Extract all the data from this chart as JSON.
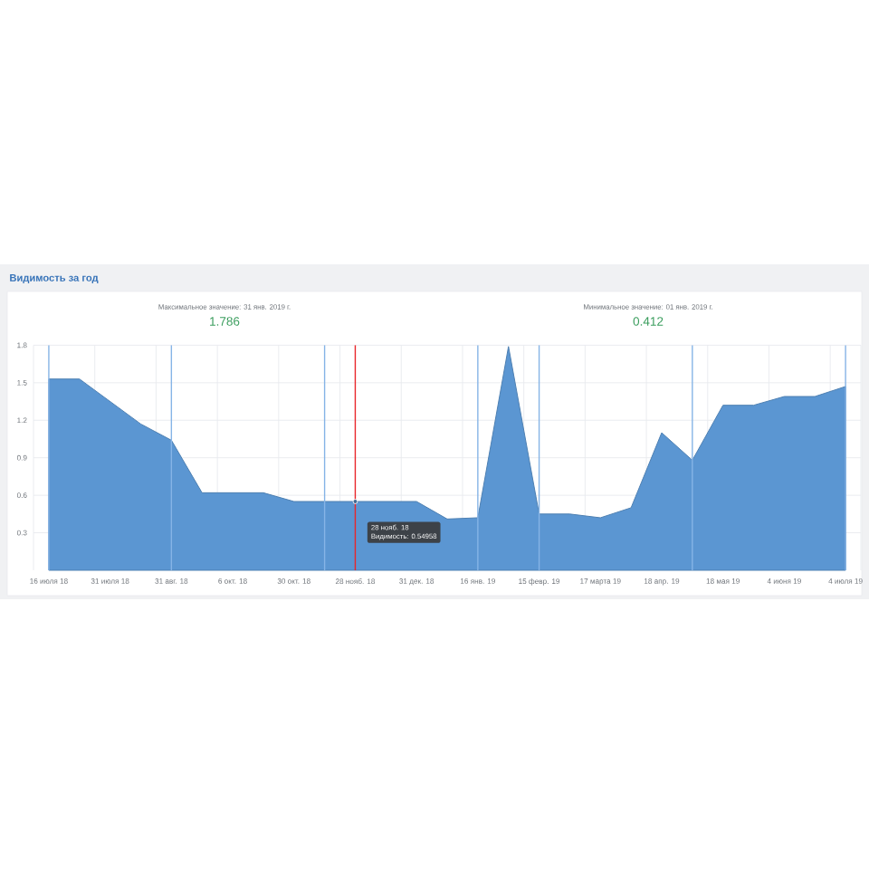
{
  "chart_data": {
    "type": "area",
    "title": "Видимость за год",
    "categories": [
      "16 июля 18",
      null,
      "31 июля 18",
      null,
      "31 авг. 18",
      null,
      "6 окт. 18",
      null,
      "30 окт. 18",
      null,
      "28 нояб. 18",
      null,
      "31 дек. 18",
      null,
      "16 янв. 19",
      null,
      "15 февр. 19",
      null,
      "17 марта 19",
      null,
      "18 апр. 19",
      null,
      "18 мая 19",
      null,
      "4 июня 19",
      null,
      "4 июля 19"
    ],
    "values": [
      1.53,
      1.53,
      1.35,
      1.17,
      1.04,
      0.62,
      0.62,
      0.62,
      0.55,
      0.55,
      0.55,
      0.55,
      0.55,
      0.41,
      0.42,
      1.79,
      0.45,
      0.45,
      0.42,
      0.5,
      1.1,
      0.88,
      1.32,
      1.32,
      1.39,
      1.39,
      1.47
    ],
    "color": "#5b96d2",
    "ylim": [
      0,
      1.8
    ],
    "yticks": [
      0.3,
      0.6,
      0.9,
      1.2,
      1.5,
      1.8
    ],
    "grid": true,
    "ref_lines": [
      {
        "axis": "x",
        "value": "28 нояб. 18",
        "color": "#e8262a"
      }
    ],
    "annotations": [
      "Максимальное значение: 31 янв. 2019 г.",
      "1.786",
      "Минимальное значение: 01 янв. 2019 г.",
      "0.412",
      "Видимость: 0.54958"
    ]
  }
}
